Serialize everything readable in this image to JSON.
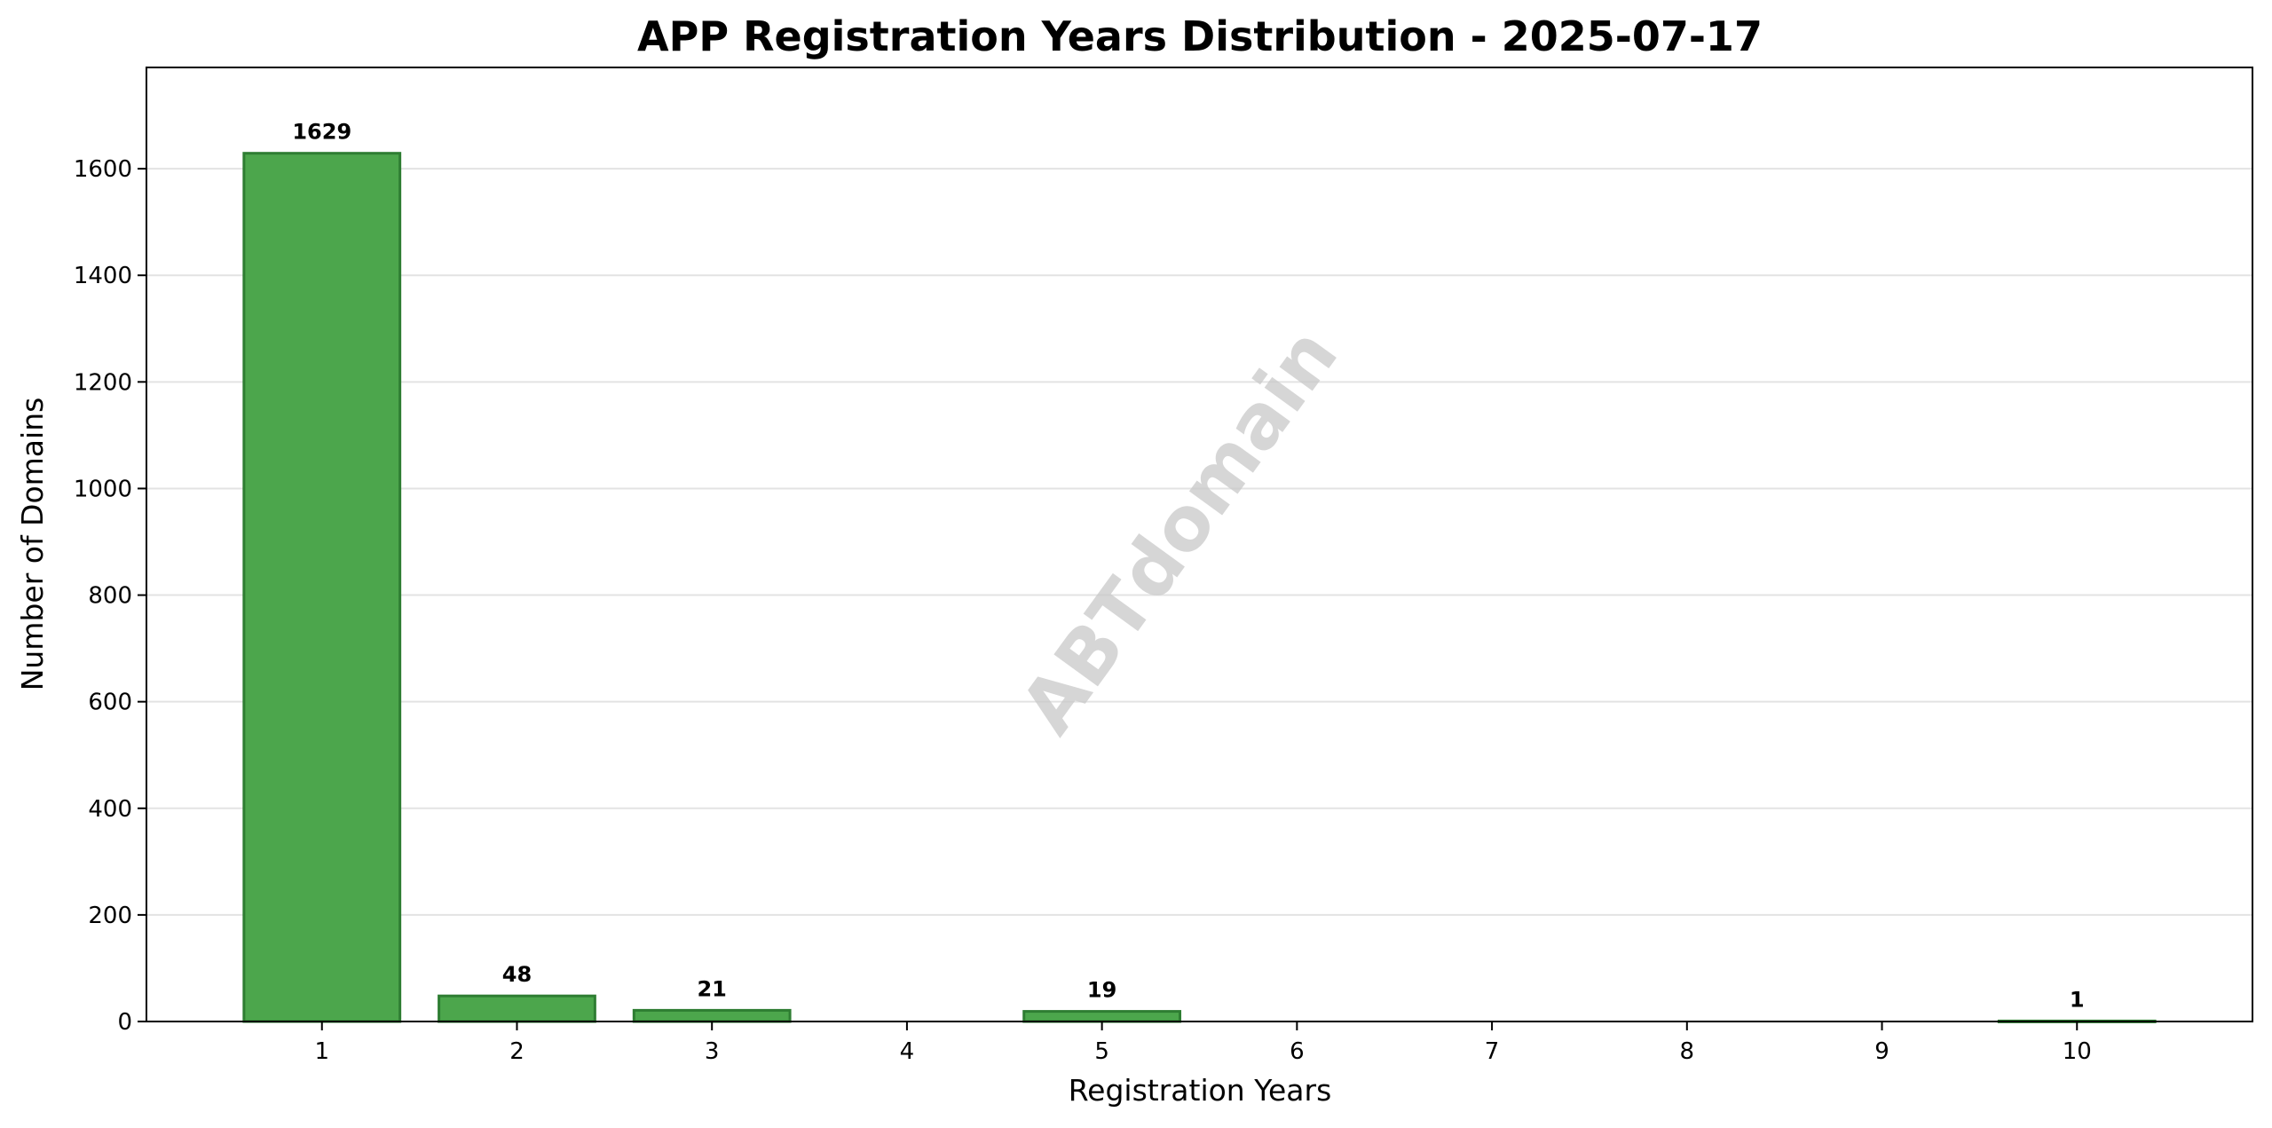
{
  "chart_data": {
    "type": "bar",
    "title": "APP Registration Years Distribution - 2025-07-17",
    "xlabel": "Registration Years",
    "ylabel": "Number of Domains",
    "categories": [
      "1",
      "2",
      "3",
      "4",
      "5",
      "6",
      "7",
      "8",
      "9",
      "10"
    ],
    "x": [
      1,
      2,
      3,
      4,
      5,
      6,
      7,
      8,
      9,
      10
    ],
    "values": [
      1629,
      48,
      21,
      0,
      19,
      0,
      0,
      0,
      0,
      1
    ],
    "data_labels": [
      "1629",
      "48",
      "21",
      "",
      "19",
      "",
      "",
      "",
      "",
      "1"
    ],
    "ylim": [
      0,
      1790
    ],
    "xlim": [
      0.1,
      10.9
    ],
    "yticks": [
      0,
      200,
      400,
      600,
      800,
      1000,
      1200,
      1400,
      1600
    ],
    "grid": "y",
    "legend": "none",
    "bar_color": "#4ca64c",
    "bar_edge_color": "#2e7d32",
    "watermark": "ABTdomain"
  }
}
